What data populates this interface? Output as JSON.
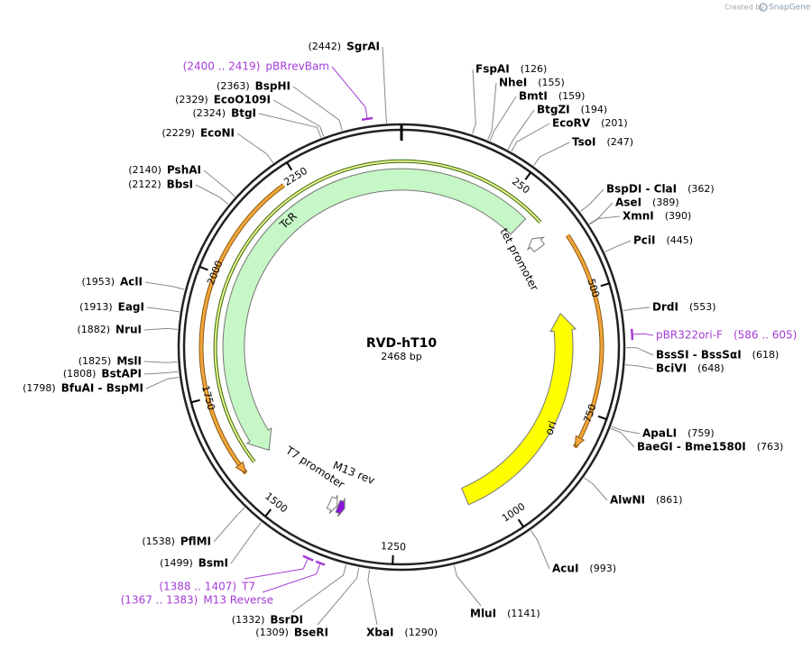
{
  "credit": {
    "prefix": "Created by",
    "brand": "SnapGene"
  },
  "map": {
    "name": "RVD-hT10",
    "size": {
      "value": 2468,
      "label": "2468 bp"
    },
    "ticks": [
      250,
      500,
      750,
      1000,
      1250,
      1500,
      1750,
      2000,
      2250
    ],
    "primer_color": "#a43cd6",
    "sites": [
      {
        "name": "SgrAI",
        "position": {
          "value": 2442,
          "label": "(2442)"
        }
      },
      {
        "name": "FspAI",
        "position": {
          "value": 126,
          "label": "(126)"
        }
      },
      {
        "name": "NheI",
        "position": {
          "value": 155,
          "label": "(155)"
        }
      },
      {
        "name": "BmtI",
        "position": {
          "value": 159,
          "label": "(159)"
        }
      },
      {
        "name": "BtgZI",
        "position": {
          "value": 194,
          "label": "(194)"
        }
      },
      {
        "name": "EcoRV",
        "position": {
          "value": 201,
          "label": "(201)"
        }
      },
      {
        "name": "TsoI",
        "position": {
          "value": 247,
          "label": "(247)"
        }
      },
      {
        "name": "BspDI  - ClaI",
        "position": {
          "value": 362,
          "label": "(362)"
        }
      },
      {
        "name": "AseI",
        "position": {
          "value": 389,
          "label": "(389)"
        }
      },
      {
        "name": "XmnI",
        "position": {
          "value": 390,
          "label": "(390)"
        }
      },
      {
        "name": "PciI",
        "position": {
          "value": 445,
          "label": "(445)"
        }
      },
      {
        "name": "DrdI",
        "position": {
          "value": 553,
          "label": "(553)"
        }
      },
      {
        "name": "BssSI  - BssSαI",
        "position": {
          "value": 618,
          "label": "(618)"
        }
      },
      {
        "name": "BciVI",
        "position": {
          "value": 648,
          "label": "(648)"
        }
      },
      {
        "name": "ApaLI",
        "position": {
          "value": 759,
          "label": "(759)"
        }
      },
      {
        "name": "BaeGI  - Bme1580I",
        "position": {
          "value": 763,
          "label": "(763)"
        }
      },
      {
        "name": "AlwNI",
        "position": {
          "value": 861,
          "label": "(861)"
        }
      },
      {
        "name": "AcuI",
        "position": {
          "value": 993,
          "label": "(993)"
        }
      },
      {
        "name": "MluI",
        "position": {
          "value": 1141,
          "label": "(1141)"
        }
      },
      {
        "name": "XbaI",
        "position": {
          "value": 1290,
          "label": "(1290)"
        }
      },
      {
        "name": "BseRI",
        "position": {
          "value": 1309,
          "label": "(1309)"
        }
      },
      {
        "name": "BsrDI",
        "position": {
          "value": 1332,
          "label": "(1332)"
        }
      },
      {
        "name": "BsmI",
        "position": {
          "value": 1499,
          "label": "(1499)"
        }
      },
      {
        "name": "PflMI",
        "position": {
          "value": 1538,
          "label": "(1538)"
        }
      },
      {
        "name": "BfuAI  - BspMI",
        "position": {
          "value": 1798,
          "label": "(1798)"
        }
      },
      {
        "name": "BstAPI",
        "position": {
          "value": 1808,
          "label": "(1808)"
        }
      },
      {
        "name": "MslI",
        "position": {
          "value": 1825,
          "label": "(1825)"
        }
      },
      {
        "name": "NruI",
        "position": {
          "value": 1882,
          "label": "(1882)"
        }
      },
      {
        "name": "EagI",
        "position": {
          "value": 1913,
          "label": "(1913)"
        }
      },
      {
        "name": "AclI",
        "position": {
          "value": 1953,
          "label": "(1953)"
        }
      },
      {
        "name": "BbsI",
        "position": {
          "value": 2122,
          "label": "(2122)"
        }
      },
      {
        "name": "PshAI",
        "position": {
          "value": 2140,
          "label": "(2140)"
        }
      },
      {
        "name": "EcoNI",
        "position": {
          "value": 2229,
          "label": "(2229)"
        }
      },
      {
        "name": "BtgI",
        "position": {
          "value": 2324,
          "label": "(2324)"
        }
      },
      {
        "name": "EcoO109I",
        "position": {
          "value": 2329,
          "label": "(2329)"
        }
      },
      {
        "name": "BspHI",
        "position": {
          "value": 2363,
          "label": "(2363)"
        }
      }
    ],
    "primers": [
      {
        "name": "pBRrevBam",
        "range": {
          "value": [
            2400,
            2419
          ],
          "label": "(2400 .. 2419)"
        }
      },
      {
        "name": "pBR322ori-F",
        "range": {
          "value": [
            586,
            605
          ],
          "label": "(586 .. 605)"
        }
      },
      {
        "name": "T7",
        "range": {
          "value": [
            1388,
            1407
          ],
          "label": "(1388 .. 1407)"
        }
      },
      {
        "name": "M13 Reverse",
        "range": {
          "value": [
            1367,
            1383
          ],
          "label": "(1367 .. 1383)"
        }
      }
    ],
    "features": [
      {
        "name": "TcR",
        "start": 1591,
        "end": 302,
        "color": "#c6f7c6"
      },
      {
        "name": "ori",
        "start": 535,
        "end": 1076,
        "color": "#ffff00"
      },
      {
        "name": "tet promoter",
        "start": 345,
        "end": 372,
        "color": "#ffffff"
      },
      {
        "name": "T7 promoter",
        "start": 1385,
        "end": 1404,
        "color": "#ffffff"
      },
      {
        "name": "M13 rev",
        "start": 1367,
        "end": 1383,
        "color": "#8b16d8"
      }
    ]
  }
}
